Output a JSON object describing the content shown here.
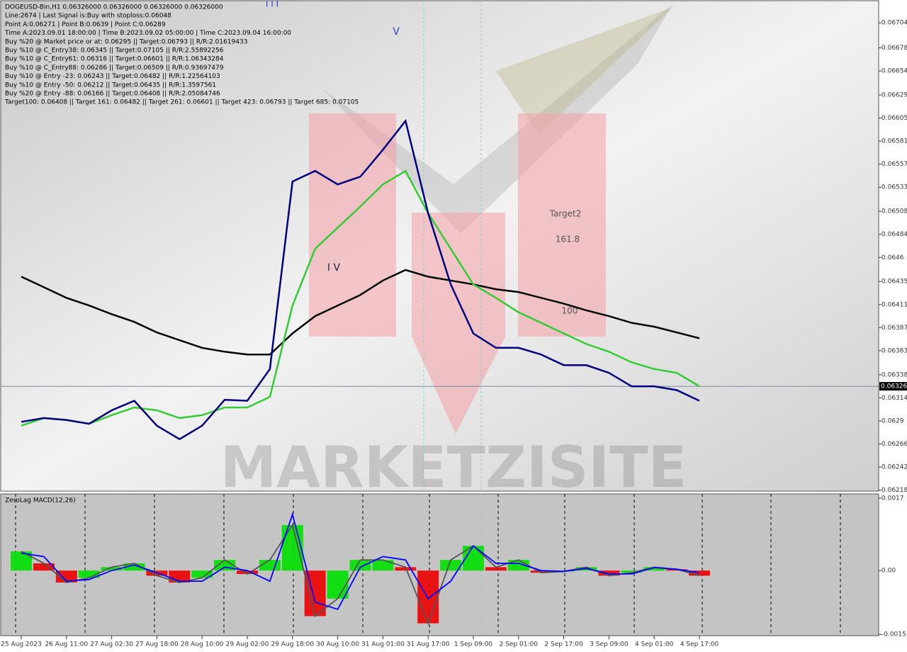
{
  "chart_data": [
    {
      "type": "line",
      "title": "DOGEUSD-Bin,H1  0.06326000 0.06326000 0.06326000 0.06326000",
      "info": [
        "Line:2674 | Last Signal is:Buy with stoploss:0.06048",
        "Point A:0.06271 | Point B:0.0639 | Point C:0.06289",
        "Time A:2023.09.01 18:00:00 | Time B:2023.09.02 05:00:00 | Time C:2023.09.04 16:00:00",
        "Buy %20 @ Market price or at: 0.06295 || Target:0.06793 || R/R:2.01619433",
        "Buy %10 @ C_Entry38: 0.06345 || Target:0.07105 || R/R:2.55892256",
        "Buy %10 @ C_Entry61: 0.06316 || Target:0.06601 || R/R:1.06343284",
        "Buy %10 @ C_Entry88: 0.06286 || Target:0.06509 || R/R:0.93697479",
        "Buy %10 @ Entry -23: 0.06243 || Target:0.06482 || R/R:1.22564103",
        "Buy %10 @ Entry -50: 0.06212 || Target:0.06435 || R/R:1.3597561",
        "Buy %20 @ Entry -88: 0.06166 || Target:0.06408 || R/R:2.05084746",
        "Target100: 0.06408 || Target 161: 0.06482 || Target 261: 0.06601 || Target 423: 0.06793 || Target 685: 0.07105"
      ],
      "annotations": [
        "Target2",
        "161.8",
        "100",
        "I V",
        "V",
        "I I I"
      ],
      "watermark": "MARKETZISITE",
      "categories": [
        "25 Aug 2023",
        null,
        "26 Aug 11:00",
        null,
        "27 Aug 02:30",
        null,
        "27 Aug 18:00",
        null,
        "28 Aug 10:00",
        null,
        "29 Aug 02:00",
        null,
        "29 Aug 18:00",
        null,
        "30 Aug 10:00",
        null,
        "31 Aug 01:00",
        null,
        "31 Aug 17:00",
        null,
        "1 Sep 09:00",
        null,
        "2 Sep 01:00",
        null,
        "2 Sep 17:00",
        null,
        "3 Sep 09:00",
        null,
        "4 Sep 01:00",
        null,
        "4 Sep 17:00"
      ],
      "series": [
        {
          "color": "#000000",
          "values": [
            0.0644,
            0.06429,
            0.06418,
            0.0641,
            0.06401,
            0.06393,
            0.06382,
            0.06374,
            0.06366,
            0.06362,
            0.06359,
            0.06359,
            0.06381,
            0.06399,
            0.0641,
            0.06421,
            0.06436,
            0.06447,
            0.0644,
            0.06436,
            0.06432,
            0.06427,
            0.06424,
            0.06418,
            0.06412,
            0.06405,
            0.06399,
            0.06392,
            0.06388,
            0.06382,
            0.06376
          ]
        },
        {
          "color": "#33cc33",
          "values": [
            0.06285,
            0.06293,
            0.06291,
            0.06287,
            0.06296,
            0.06304,
            0.06301,
            0.06293,
            0.06296,
            0.06304,
            0.06304,
            0.06315,
            0.0641,
            0.06469,
            0.06491,
            0.06513,
            0.06536,
            0.0655,
            0.06506,
            0.06469,
            0.06432,
            0.06418,
            0.06403,
            0.06392,
            0.06381,
            0.0637,
            0.06362,
            0.06351,
            0.06344,
            0.0634,
            0.06326
          ]
        },
        {
          "color": "#000080",
          "values": [
            0.06289,
            0.06293,
            0.06291,
            0.06287,
            0.06301,
            0.06311,
            0.06285,
            0.06271,
            0.06285,
            0.06312,
            0.06311,
            0.06344,
            0.06539,
            0.0655,
            0.06536,
            0.06544,
            0.06572,
            0.06602,
            0.06506,
            0.06432,
            0.06381,
            0.06366,
            0.06366,
            0.06359,
            0.06348,
            0.06348,
            0.0634,
            0.06326,
            0.06326,
            0.06322,
            0.06311
          ]
        }
      ],
      "ylim": [
        0.06217,
        0.06727
      ],
      "yticks": [
        0.06704,
        0.06678,
        0.06654,
        0.06629,
        0.06605,
        0.06581,
        0.06557,
        0.06533,
        0.06508,
        0.06484,
        0.0646,
        0.06435,
        0.06411,
        0.06387,
        0.06363,
        0.06338,
        0.06314,
        0.0629,
        0.06266,
        0.06242,
        0.06218
      ],
      "last_price": 0.06326
    },
    {
      "type": "macd",
      "title": "ZeroLag MACD(12,26)",
      "ylim": [
        -0.00153,
        0.0018
      ],
      "yticks": [
        0.0017,
        {
          "value": 0,
          "label": "0.00"
        },
        -0.0015
      ],
      "series": [
        {
          "color": "#555555",
          "values": [
            0.00045,
            0.00017,
            -0.00028,
            -0.00017,
            8e-05,
            0.00017,
            -0.00012,
            -0.00028,
            -0.00017,
            0.00025,
            -8e-05,
            0.00025,
            0.00107,
            -0.00107,
            -0.00066,
            0.00025,
            0.00025,
            8e-05,
            -0.00124,
            0.00025,
            0.00058,
            8e-05,
            0.00025,
            -5e-05,
            -2e-05,
            8e-05,
            -0.00012,
            -5e-05,
            8e-05,
            3e-05,
            -0.00012
          ]
        },
        {
          "color": "#0000ff",
          "values": [
            0.00041,
            0.00033,
            -0.00025,
            -0.00021,
            0,
            0.00013,
            -5e-05,
            -0.00025,
            -0.00025,
            8e-05,
            0,
            -0.00025,
            0.00132,
            -0.00074,
            -0.00091,
            8e-05,
            0.00033,
            0.00025,
            -0.00066,
            -0.00025,
            0.00058,
            0.00017,
            0.00017,
            0,
            -2e-05,
            5e-05,
            -8e-05,
            -8e-05,
            7e-05,
            3e-05,
            -5e-05
          ]
        }
      ]
    }
  ]
}
